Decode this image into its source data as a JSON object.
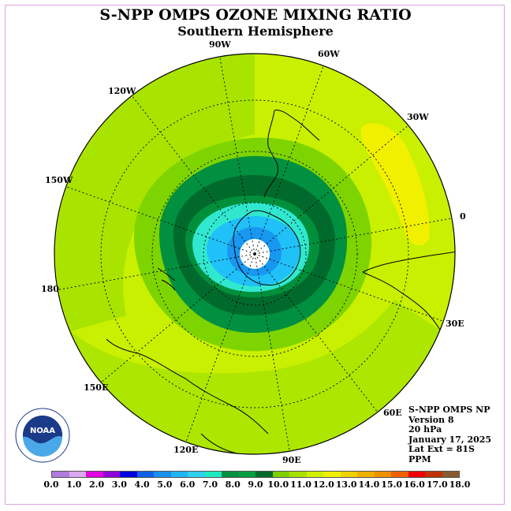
{
  "title": "S-NPP OMPS OZONE MIXING RATIO",
  "subtitle": "Southern Hemisphere",
  "longitude_labels": [
    {
      "text": "90W"
    },
    {
      "text": "60W"
    },
    {
      "text": "120W"
    },
    {
      "text": "30W"
    },
    {
      "text": "150W"
    },
    {
      "text": "0"
    },
    {
      "text": "180"
    },
    {
      "text": "30E"
    },
    {
      "text": "150E"
    },
    {
      "text": "60E"
    },
    {
      "text": "120E"
    },
    {
      "text": "90E"
    }
  ],
  "info": {
    "line1": "S-NPP OMPS NP",
    "line2": "Version 8",
    "line3": "20 hPa",
    "line4": "January 17, 2025",
    "line5": "Lat Ext = 81S",
    "line6": "PPM"
  },
  "logo_text": "NOAA",
  "colorbar": {
    "colors": [
      "#b07ae0",
      "#d8a8f0",
      "#e000e0",
      "#9000d8",
      "#0000e0",
      "#1060e8",
      "#1890f0",
      "#20b4f8",
      "#30d0f0",
      "#20e8c0",
      "#009040",
      "#00a040",
      "#006a2c",
      "#80d000",
      "#a8e000",
      "#d0f000",
      "#f0f000",
      "#f0d000",
      "#f0b000",
      "#f09000",
      "#f06000",
      "#f00000",
      "#c03000",
      "#8a5a30"
    ],
    "ticks": [
      "0.0",
      "1.0",
      "2.0",
      "3.0",
      "4.0",
      "5.0",
      "6.0",
      "7.0",
      "8.0",
      "9.0",
      "10.0",
      "11.0",
      "12.0",
      "13.0",
      "14.0",
      "15.0",
      "16.0",
      "17.0",
      "18.0"
    ]
  }
}
